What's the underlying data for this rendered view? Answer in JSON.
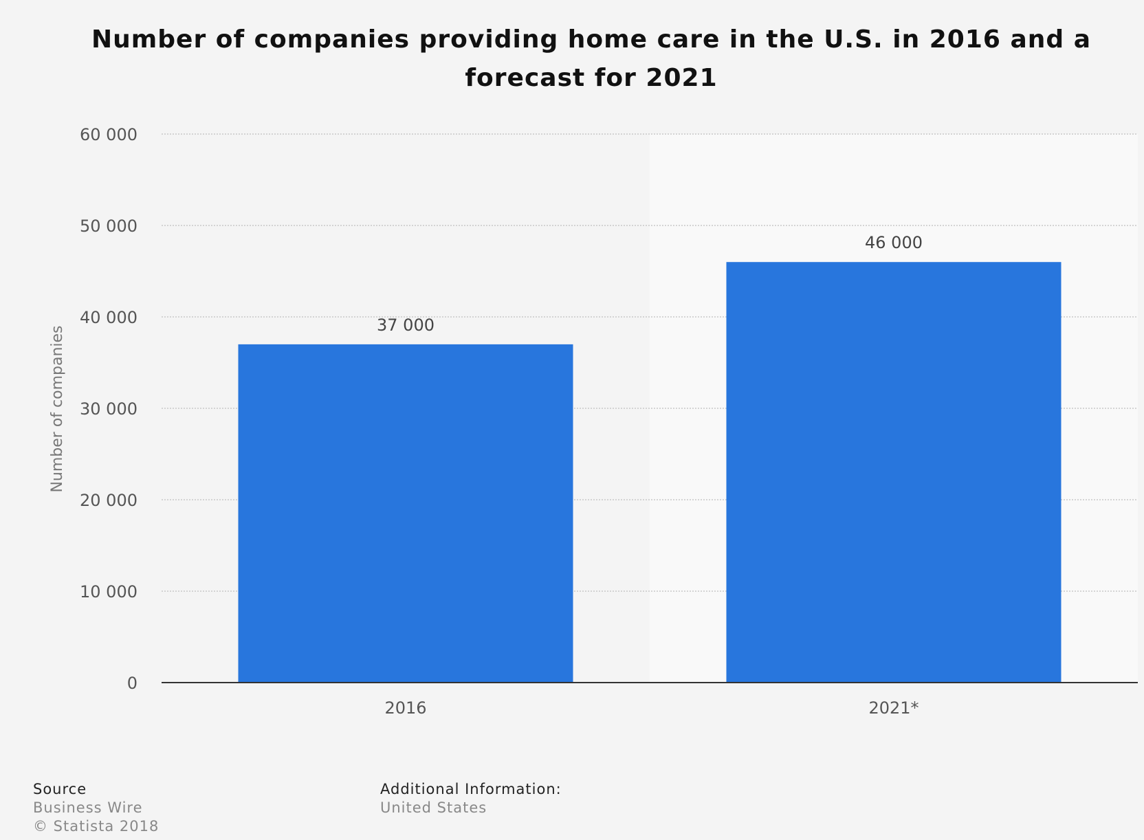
{
  "chart_data": {
    "type": "bar",
    "title": "Number of companies providing home care in the U.S. in 2016 and a forecast for 2021",
    "xlabel": "",
    "ylabel": "Number of companies",
    "categories": [
      "2016",
      "2021*"
    ],
    "values": [
      37000,
      46000
    ],
    "value_labels": [
      "37 000",
      "46 000"
    ],
    "ylim": [
      0,
      60000
    ],
    "yticks": [
      0,
      10000,
      20000,
      30000,
      40000,
      50000,
      60000
    ],
    "ytick_labels": [
      "0",
      "10 000",
      "20 000",
      "30 000",
      "40 000",
      "50 000",
      "60 000"
    ],
    "grid": true,
    "legend": "none",
    "colors": {
      "bar": "#2876dd",
      "axis": "#333333",
      "grid": "#c8c8c8",
      "band": "#f9f9f9"
    }
  },
  "footer": {
    "source_heading": "Source",
    "source_name": "Business Wire",
    "copyright": "© Statista 2018",
    "info_heading": "Additional Information:",
    "info_value": "United States"
  }
}
